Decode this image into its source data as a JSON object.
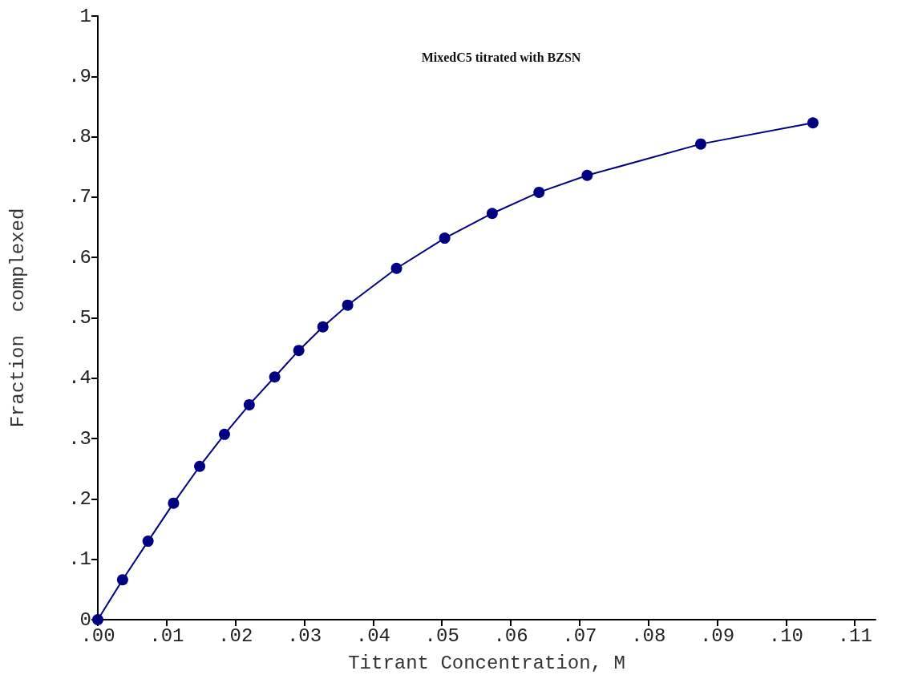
{
  "chart_data": {
    "type": "line",
    "title": "MixedC5 titrated with BZSN",
    "xlabel": "Titrant Concentration, M",
    "ylabel": "Fraction  complexed",
    "x": [
      0,
      0.0036,
      0.0073,
      0.011,
      0.0148,
      0.0184,
      0.022,
      0.0257,
      0.0292,
      0.0327,
      0.0363,
      0.0434,
      0.0504,
      0.0573,
      0.0641,
      0.0711,
      0.0876,
      0.1039
    ],
    "series": [
      {
        "color": "#000080",
        "values": [
          0,
          0.066,
          0.13,
          0.193,
          0.254,
          0.307,
          0.356,
          0.402,
          0.446,
          0.485,
          0.521,
          0.582,
          0.632,
          0.673,
          0.708,
          0.736,
          0.788,
          0.823
        ]
      }
    ],
    "xlim": [
      0,
      0.113
    ],
    "ylim": [
      0,
      1
    ],
    "xticks": [
      {
        "value": 0,
        "label": ".00"
      },
      {
        "value": 0.01,
        "label": ".01"
      },
      {
        "value": 0.02,
        "label": ".02"
      },
      {
        "value": 0.03,
        "label": ".03"
      },
      {
        "value": 0.04,
        "label": ".04"
      },
      {
        "value": 0.05,
        "label": ".05"
      },
      {
        "value": 0.06,
        "label": ".06"
      },
      {
        "value": 0.07,
        "label": ".07"
      },
      {
        "value": 0.08,
        "label": ".08"
      },
      {
        "value": 0.09,
        "label": ".09"
      },
      {
        "value": 0.1,
        "label": ".10"
      },
      {
        "value": 0.11,
        "label": ".11"
      }
    ],
    "yticks": [
      0,
      {
        "value": 0.1,
        "label": ".1"
      },
      {
        "value": 0.2,
        "label": ".2"
      },
      {
        "value": 0.3,
        "label": ".3"
      },
      {
        "value": 0.4,
        "label": ".4"
      },
      {
        "value": 0.5,
        "label": ".5"
      },
      {
        "value": 0.6,
        "label": ".6"
      },
      {
        "value": 0.7,
        "label": ".7"
      },
      {
        "value": 0.8,
        "label": ".8"
      },
      {
        "value": 0.9,
        "label": ".9"
      },
      1
    ],
    "grid": false,
    "marker": "circle",
    "line_style": "solid"
  }
}
